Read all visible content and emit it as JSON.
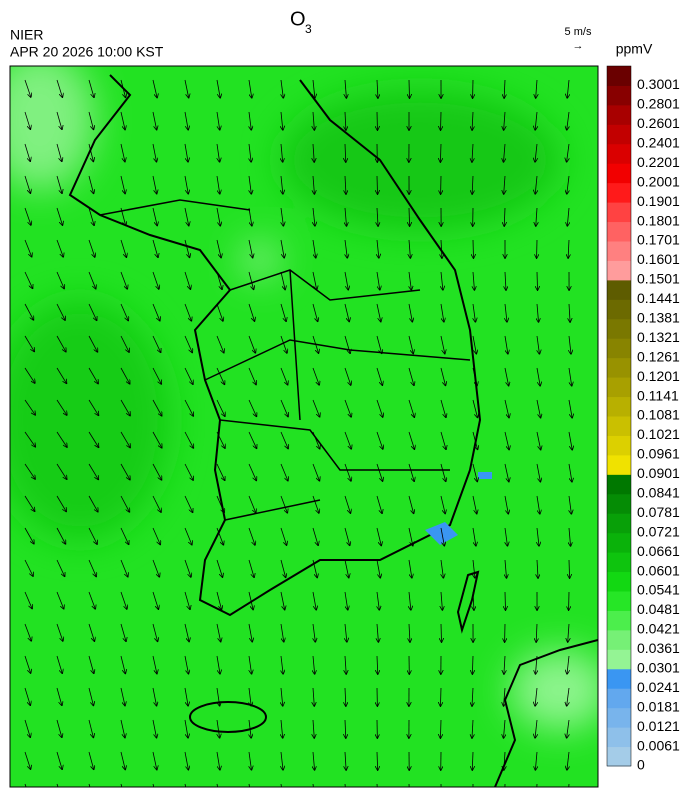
{
  "header": {
    "agency": "NIER",
    "datetime": "APR 20 2026 10:00 KST",
    "title": {
      "text": "O",
      "subscript": "3"
    }
  },
  "wind_scale": {
    "label": "5 m/s",
    "arrow": "→"
  },
  "colorbar": {
    "unit": "ppmV",
    "levels": [
      {
        "label": "0",
        "color": "#a4cce8"
      },
      {
        "label": "0.0061",
        "color": "#8ec0ea"
      },
      {
        "label": "0.0121",
        "color": "#78b4ec"
      },
      {
        "label": "0.0181",
        "color": "#62a8ee"
      },
      {
        "label": "0.0241",
        "color": "#3a96f2"
      },
      {
        "label": "0.0301",
        "color": "#94f494"
      },
      {
        "label": "0.0361",
        "color": "#76f076"
      },
      {
        "label": "0.0421",
        "color": "#4cee4c"
      },
      {
        "label": "0.0481",
        "color": "#26e626"
      },
      {
        "label": "0.0541",
        "color": "#12d812"
      },
      {
        "label": "0.0601",
        "color": "#0ec40e"
      },
      {
        "label": "0.0661",
        "color": "#0ab20a"
      },
      {
        "label": "0.0721",
        "color": "#08a008"
      },
      {
        "label": "0.0781",
        "color": "#058c05"
      },
      {
        "label": "0.0841",
        "color": "#007800"
      },
      {
        "label": "0.0901",
        "color": "#f0e200"
      },
      {
        "label": "0.0961",
        "color": "#dcd000"
      },
      {
        "label": "0.1021",
        "color": "#cac000"
      },
      {
        "label": "0.1081",
        "color": "#b8b000"
      },
      {
        "label": "0.1141",
        "color": "#a8a000"
      },
      {
        "label": "0.1201",
        "color": "#989200"
      },
      {
        "label": "0.1261",
        "color": "#888400"
      },
      {
        "label": "0.1321",
        "color": "#7a7800"
      },
      {
        "label": "0.1381",
        "color": "#6c6a00"
      },
      {
        "label": "0.1441",
        "color": "#5e5c00"
      },
      {
        "label": "0.1501",
        "color": "#ff9c9c"
      },
      {
        "label": "0.1601",
        "color": "#ff8080"
      },
      {
        "label": "0.1701",
        "color": "#ff6262"
      },
      {
        "label": "0.1801",
        "color": "#ff4242"
      },
      {
        "label": "0.1901",
        "color": "#ff1a1a"
      },
      {
        "label": "0.2001",
        "color": "#f20000"
      },
      {
        "label": "0.2201",
        "color": "#da0000"
      },
      {
        "label": "0.2401",
        "color": "#c20000"
      },
      {
        "label": "0.2601",
        "color": "#a80000"
      },
      {
        "label": "0.2801",
        "color": "#880000"
      },
      {
        "label": "0.3001",
        "color": "#6a0000"
      }
    ]
  }
}
